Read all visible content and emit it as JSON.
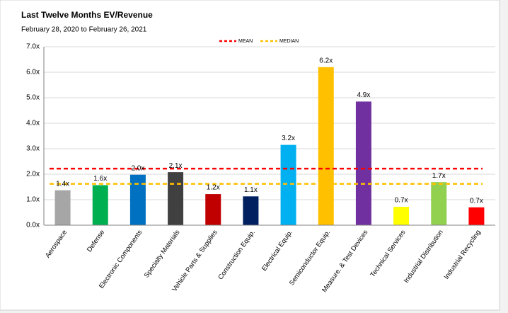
{
  "chart_data": {
    "type": "bar",
    "title": "Last Twelve Months EV/Revenue",
    "subtitle": "February 28, 2020 to February 26, 2021",
    "categories": [
      "Aerospace",
      "Defense",
      "Electronic Components",
      "Specialty Materials",
      "Vehicle Parts & Supplies",
      "Construction Equip.",
      "Electrical Equip.",
      "Semiconductor Equip.",
      "Measure. & Test Devices",
      "Technical Services",
      "Industrial Distribution",
      "Industrial Recycling"
    ],
    "values": [
      1.37,
      1.57,
      1.98,
      2.08,
      1.22,
      1.13,
      3.15,
      6.2,
      4.85,
      0.72,
      1.69,
      0.7
    ],
    "value_labels": [
      "1.4x",
      "1.6x",
      "2.0x",
      "2.1x",
      "1.2x",
      "1.1x",
      "3.2x",
      "6.2x",
      "4.9x",
      "0.7x",
      "1.7x",
      "0.7x"
    ],
    "colors": [
      "#a6a6a6",
      "#00b050",
      "#0070c0",
      "#404040",
      "#c00000",
      "#002060",
      "#00b0f0",
      "#ffc000",
      "#7030a0",
      "#ffff00",
      "#92d050",
      "#ff0000"
    ],
    "ylim": [
      0,
      7
    ],
    "yticks": [
      {
        "value": 0,
        "label": "0.0x"
      },
      {
        "value": 1,
        "label": "1.0x"
      },
      {
        "value": 2,
        "label": "2.0x"
      },
      {
        "value": 3,
        "label": "3.0x"
      },
      {
        "value": 4,
        "label": "4.0x"
      },
      {
        "value": 5,
        "label": "5.0x"
      },
      {
        "value": 6,
        "label": "6.0x"
      },
      {
        "value": 7,
        "label": "7.0x"
      }
    ],
    "grid": true,
    "reference_lines": [
      {
        "name": "MEAN",
        "value": 2.22,
        "color": "#ff0000"
      },
      {
        "name": "MEDIAN",
        "value": 1.62,
        "color": "#ffc000"
      }
    ]
  }
}
